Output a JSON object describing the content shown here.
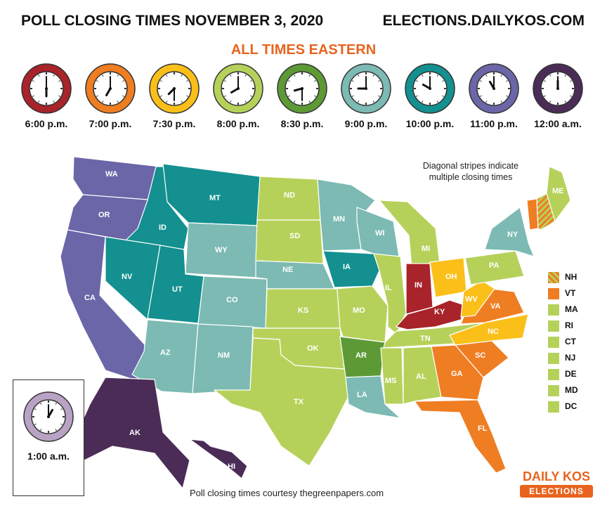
{
  "header": {
    "title": "POLL CLOSING TIMES NOVEMBER 3, 2020",
    "site": "ELECTIONS.DAILYKOS.COM",
    "subtitle": "ALL TIMES EASTERN"
  },
  "clocks": [
    {
      "label": "6:00 p.m.",
      "color": "#a8232a",
      "hour": 6,
      "minute": 0
    },
    {
      "label": "7:00 p.m.",
      "color": "#ef7d22",
      "hour": 7,
      "minute": 0
    },
    {
      "label": "7:30 p.m.",
      "color": "#fbbf1a",
      "hour": 7,
      "minute": 30
    },
    {
      "label": "8:00 p.m.",
      "color": "#b6d15a",
      "hour": 8,
      "minute": 0
    },
    {
      "label": "8:30 p.m.",
      "color": "#5d9a36",
      "hour": 8,
      "minute": 30
    },
    {
      "label": "9:00 p.m.",
      "color": "#7cbab3",
      "hour": 9,
      "minute": 0
    },
    {
      "label": "10:00 p.m.",
      "color": "#13908f",
      "hour": 10,
      "minute": 0
    },
    {
      "label": "11:00 p.m.",
      "color": "#6b66a8",
      "hour": 11,
      "minute": 0
    },
    {
      "label": "12:00 a.m.",
      "color": "#4a2c57",
      "hour": 12,
      "minute": 0
    }
  ],
  "note": "Diagonal stripes indicate multiple closing times",
  "states": [
    {
      "abbr": "WA",
      "time": "11:00 p.m."
    },
    {
      "abbr": "OR",
      "time": "11:00 p.m."
    },
    {
      "abbr": "CA",
      "time": "11:00 p.m."
    },
    {
      "abbr": "ID",
      "time": "10:00 p.m."
    },
    {
      "abbr": "NV",
      "time": "10:00 p.m."
    },
    {
      "abbr": "UT",
      "time": "10:00 p.m."
    },
    {
      "abbr": "MT",
      "time": "10:00 p.m."
    },
    {
      "abbr": "AZ",
      "time": "9:00 p.m."
    },
    {
      "abbr": "WY",
      "time": "9:00 p.m."
    },
    {
      "abbr": "CO",
      "time": "9:00 p.m."
    },
    {
      "abbr": "NM",
      "time": "9:00 p.m."
    },
    {
      "abbr": "NE",
      "time": "9:00 p.m."
    },
    {
      "abbr": "MN",
      "time": "9:00 p.m."
    },
    {
      "abbr": "WI",
      "time": "9:00 p.m."
    },
    {
      "abbr": "NY",
      "time": "9:00 p.m."
    },
    {
      "abbr": "LA",
      "time": "9:00 p.m."
    },
    {
      "abbr": "IA",
      "time": "10:00 p.m."
    },
    {
      "abbr": "ND",
      "time": "8:00 p.m."
    },
    {
      "abbr": "SD",
      "time": "8:00 p.m."
    },
    {
      "abbr": "KS",
      "time": "8:00 p.m."
    },
    {
      "abbr": "OK",
      "time": "8:00 p.m."
    },
    {
      "abbr": "TX",
      "time": "8:00 p.m."
    },
    {
      "abbr": "MO",
      "time": "8:00 p.m."
    },
    {
      "abbr": "IL",
      "time": "8:00 p.m."
    },
    {
      "abbr": "MI",
      "time": "8:00 p.m."
    },
    {
      "abbr": "TN",
      "time": "8:00 p.m."
    },
    {
      "abbr": "MS",
      "time": "8:00 p.m."
    },
    {
      "abbr": "AL",
      "time": "8:00 p.m."
    },
    {
      "abbr": "PA",
      "time": "8:00 p.m."
    },
    {
      "abbr": "ME",
      "time": "8:00 p.m."
    },
    {
      "abbr": "AR",
      "time": "8:30 p.m."
    },
    {
      "abbr": "OH",
      "time": "7:30 p.m."
    },
    {
      "abbr": "WV",
      "time": "7:30 p.m."
    },
    {
      "abbr": "NC",
      "time": "7:30 p.m."
    },
    {
      "abbr": "VA",
      "time": "7:00 p.m."
    },
    {
      "abbr": "GA",
      "time": "7:00 p.m."
    },
    {
      "abbr": "SC",
      "time": "7:00 p.m."
    },
    {
      "abbr": "FL",
      "time": "7:00 p.m."
    },
    {
      "abbr": "IN",
      "time": "6:00 p.m."
    },
    {
      "abbr": "KY",
      "time": "6:00 p.m."
    },
    {
      "abbr": "AK",
      "time": "12:00 a.m."
    },
    {
      "abbr": "HI",
      "time": "12:00 a.m."
    }
  ],
  "legend": [
    {
      "abbr": "NH",
      "color": "#ef7d22",
      "striped": true
    },
    {
      "abbr": "VT",
      "color": "#ef7d22",
      "striped": false
    },
    {
      "abbr": "MA",
      "color": "#b6d15a",
      "striped": false
    },
    {
      "abbr": "RI",
      "color": "#b6d15a",
      "striped": false
    },
    {
      "abbr": "CT",
      "color": "#b6d15a",
      "striped": false
    },
    {
      "abbr": "NJ",
      "color": "#b6d15a",
      "striped": false
    },
    {
      "abbr": "DE",
      "color": "#b6d15a",
      "striped": false
    },
    {
      "abbr": "MD",
      "color": "#b6d15a",
      "striped": false
    },
    {
      "abbr": "DC",
      "color": "#b6d15a",
      "striped": false
    }
  ],
  "inset": {
    "label": "1:00 a.m.",
    "color": "#b9a3c4",
    "hour": 1,
    "minute": 0
  },
  "credit": "Poll closing times courtesy thegreenpapers.com",
  "logo": {
    "top": "DAILY KOS",
    "bottom": "ELECTIONS"
  }
}
